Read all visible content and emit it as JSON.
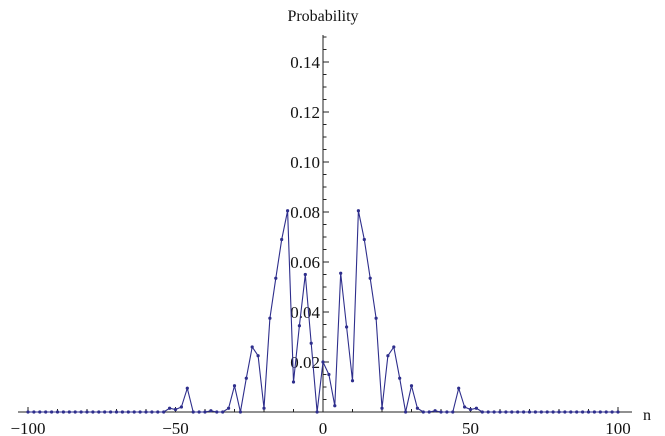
{
  "chart_data": {
    "type": "line",
    "title": "",
    "xlabel": "n",
    "ylabel": "Probability",
    "xlim": [
      -100,
      100
    ],
    "ylim": [
      0,
      0.15
    ],
    "x_ticks": [
      -100,
      -50,
      0,
      50,
      100
    ],
    "x_tick_labels": [
      "−100",
      "−50",
      "0",
      "50",
      "100"
    ],
    "y_ticks": [
      0.02,
      0.04,
      0.06,
      0.08,
      0.1,
      0.12,
      0.14
    ],
    "y_tick_labels": [
      "0.02",
      "0.04",
      "0.06",
      "0.08",
      "0.10",
      "0.12",
      "0.14"
    ],
    "grid": false,
    "markers": true,
    "colors": {
      "series": "#2e2e8c",
      "axis": "#222222"
    },
    "series": [
      {
        "name": "",
        "points": [
          [
            -100,
            0
          ],
          [
            -98,
            0
          ],
          [
            -96,
            0
          ],
          [
            -94,
            0
          ],
          [
            -92,
            0
          ],
          [
            -90,
            0
          ],
          [
            -88,
            0
          ],
          [
            -86,
            0
          ],
          [
            -84,
            0
          ],
          [
            -82,
            0
          ],
          [
            -80,
            0
          ],
          [
            -78,
            0
          ],
          [
            -76,
            0
          ],
          [
            -74,
            0
          ],
          [
            -72,
            0
          ],
          [
            -70,
            0
          ],
          [
            -68,
            0
          ],
          [
            -66,
            0
          ],
          [
            -64,
            0
          ],
          [
            -62,
            0
          ],
          [
            -60,
            0
          ],
          [
            -58,
            0
          ],
          [
            -56,
            0
          ],
          [
            -54,
            0
          ],
          [
            -52,
            0.0015
          ],
          [
            -50,
            0.001
          ],
          [
            -48,
            0.002
          ],
          [
            -46,
            0.0095
          ],
          [
            -44,
            0
          ],
          [
            -42,
            0
          ],
          [
            -40,
            0
          ],
          [
            -38,
            0.0005
          ],
          [
            -36,
            0
          ],
          [
            -34,
            0
          ],
          [
            -32,
            0.0015
          ],
          [
            -30,
            0.0105
          ],
          [
            -28,
            0
          ],
          [
            -26,
            0.0135
          ],
          [
            -24,
            0.026
          ],
          [
            -22,
            0.0225
          ],
          [
            -20,
            0.0015
          ],
          [
            -18,
            0.0375
          ],
          [
            -16,
            0.0535
          ],
          [
            -14,
            0.069
          ],
          [
            -12,
            0.0805
          ],
          [
            -10,
            0.012
          ],
          [
            -8,
            0.0345
          ],
          [
            -6,
            0.055
          ],
          [
            -4,
            0.0275
          ],
          [
            -2,
            0.0
          ],
          [
            0,
            0.02
          ],
          [
            2,
            0.015
          ],
          [
            4,
            0.0025
          ],
          [
            6,
            0.0555
          ],
          [
            8,
            0.034
          ],
          [
            10,
            0.0125
          ],
          [
            12,
            0.0805
          ],
          [
            14,
            0.069
          ],
          [
            16,
            0.0535
          ],
          [
            18,
            0.0375
          ],
          [
            20,
            0.0015
          ],
          [
            22,
            0.0225
          ],
          [
            24,
            0.026
          ],
          [
            26,
            0.0135
          ],
          [
            28,
            0
          ],
          [
            30,
            0.0105
          ],
          [
            32,
            0.0015
          ],
          [
            34,
            0
          ],
          [
            36,
            0
          ],
          [
            38,
            0.0005
          ],
          [
            40,
            0
          ],
          [
            42,
            0
          ],
          [
            44,
            0
          ],
          [
            46,
            0.0095
          ],
          [
            48,
            0.002
          ],
          [
            50,
            0.001
          ],
          [
            52,
            0.0015
          ],
          [
            54,
            0
          ],
          [
            56,
            0
          ],
          [
            58,
            0
          ],
          [
            60,
            0
          ],
          [
            62,
            0
          ],
          [
            64,
            0
          ],
          [
            66,
            0
          ],
          [
            68,
            0
          ],
          [
            70,
            0
          ],
          [
            72,
            0
          ],
          [
            74,
            0
          ],
          [
            76,
            0
          ],
          [
            78,
            0
          ],
          [
            80,
            0
          ],
          [
            82,
            0
          ],
          [
            84,
            0
          ],
          [
            86,
            0
          ],
          [
            88,
            0
          ],
          [
            90,
            0
          ],
          [
            92,
            0
          ],
          [
            94,
            0
          ],
          [
            96,
            0
          ],
          [
            98,
            0
          ],
          [
            100,
            0
          ]
        ]
      }
    ]
  }
}
